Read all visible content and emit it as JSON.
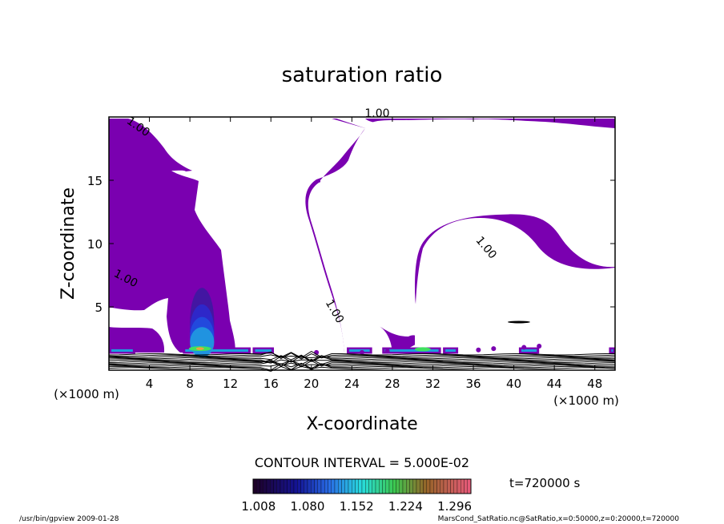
{
  "chart_data": {
    "type": "contour",
    "title": "saturation ratio",
    "xlabel": "X-coordinate",
    "ylabel": "Z-coordinate",
    "x_unit": "(×1000 m)",
    "xlim": [
      0,
      50
    ],
    "ylim": [
      0,
      20
    ],
    "x_ticks": [
      4,
      8,
      12,
      16,
      20,
      24,
      28,
      32,
      36,
      40,
      44,
      48
    ],
    "y_ticks": [
      5,
      10,
      15
    ],
    "contour_labels": [
      {
        "text": "1.00",
        "x": 2.7,
        "z": 19.0,
        "angle": 35
      },
      {
        "text": "1.00",
        "x": 26.5,
        "z": 20.0,
        "angle": 0
      },
      {
        "text": "1.00",
        "x": 1.5,
        "z": 7.0,
        "angle": 28
      },
      {
        "text": "1.00",
        "x": 37.0,
        "z": 9.5,
        "angle": 50
      },
      {
        "text": "1.00",
        "x": 22.0,
        "z": 4.5,
        "angle": 60
      }
    ],
    "contour_interval_text": "CONTOUR INTERVAL = 5.000E-02",
    "colorbar": {
      "tick_labels": [
        "1.008",
        "1.080",
        "1.152",
        "1.224",
        "1.296"
      ],
      "min": 1.0,
      "max": 1.32
    },
    "time_label": "t=720000 s",
    "fill_color": "#7a00b0"
  },
  "footer": {
    "left": "/usr/bin/gpview   2009-01-28",
    "right": "MarsCond_SatRatio.nc@SatRatio,x=0:50000,z=0:20000,t=720000"
  }
}
